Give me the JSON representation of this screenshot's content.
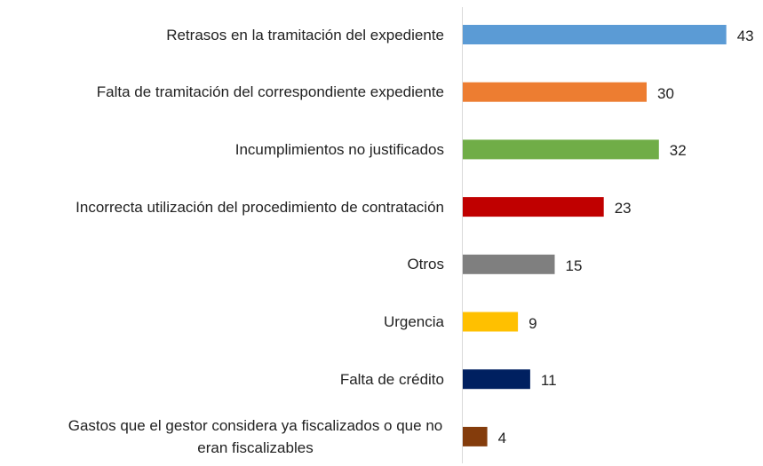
{
  "chart_data": {
    "type": "bar",
    "orientation": "horizontal",
    "categories": [
      "Retrasos en la tramitación del expediente",
      "Falta de tramitación del correspondiente expediente",
      "Incumplimientos no justificados",
      "Incorrecta utilización del procedimiento de contratación",
      "Otros",
      "Urgencia",
      "Falta de crédito",
      "Gastos que el gestor considera ya fiscalizados o que no eran fiscalizables"
    ],
    "values": [
      43,
      30,
      32,
      23,
      15,
      9,
      11,
      4
    ],
    "colors": [
      "#5b9bd5",
      "#ed7d31",
      "#70ad47",
      "#c00000",
      "#7f7f7f",
      "#ffc000",
      "#002060",
      "#843c0c"
    ]
  }
}
